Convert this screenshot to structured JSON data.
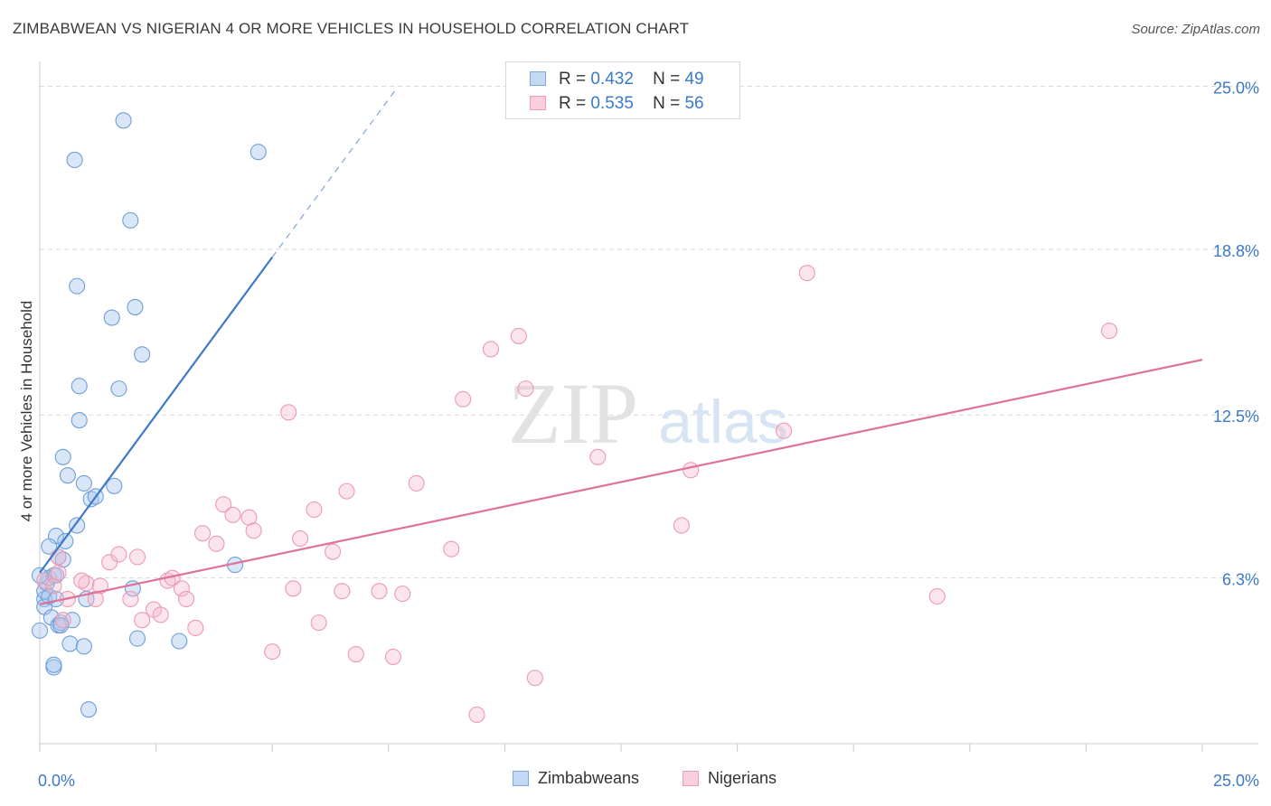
{
  "header": {
    "title": "ZIMBABWEAN VS NIGERIAN 4 OR MORE VEHICLES IN HOUSEHOLD CORRELATION CHART",
    "source": "Source: ZipAtlas.com"
  },
  "watermark": {
    "zip": "ZIP",
    "atlas": "atlas"
  },
  "colors": {
    "zimbabwean_fill": "#a9c8ef",
    "zimbabwean_line": "#3b79c9",
    "nigerian_fill": "#f5bccd",
    "nigerian_line": "#e07299",
    "tick_label": "#3b79c9",
    "grid": "#d9d9d9"
  },
  "legend": {
    "items": [
      {
        "r_label": "R =",
        "r_value": "0.432",
        "n_label": "N =",
        "n_value": "49"
      },
      {
        "r_label": "R =",
        "r_value": "0.535",
        "n_label": "N =",
        "n_value": "56"
      }
    ]
  },
  "bottom_legend": [
    "Zimbabweans",
    "Nigerians"
  ],
  "chart_data": {
    "type": "scatter",
    "title": "ZIMBABWEAN VS NIGERIAN 4 OR MORE VEHICLES IN HOUSEHOLD CORRELATION CHART",
    "xlabel": "",
    "ylabel": "4 or more Vehicles in Household",
    "xlim": [
      0,
      25
    ],
    "ylim": [
      0,
      25.6
    ],
    "x_tick_labels": [
      "0.0%",
      "25.0%"
    ],
    "y_ticks": [
      6.3,
      12.5,
      18.8,
      25.0
    ],
    "y_tick_labels": [
      "6.3%",
      "12.5%",
      "18.8%",
      "25.0%"
    ],
    "grid": true,
    "legend_position": "top-center",
    "series": [
      {
        "name": "Zimbabweans",
        "R": 0.432,
        "N": 49,
        "trend": {
          "x0": 0.0,
          "y0": 6.5,
          "x1": 5.0,
          "y1": 18.5,
          "dashed_to_x": 7.7
        },
        "points": [
          [
            0.0,
            4.3
          ],
          [
            0.1,
            5.5
          ],
          [
            0.1,
            5.2
          ],
          [
            0.1,
            5.8
          ],
          [
            0.15,
            6.1
          ],
          [
            0.2,
            6.3
          ],
          [
            0.2,
            5.6
          ],
          [
            0.25,
            4.8
          ],
          [
            0.3,
            6.4
          ],
          [
            0.3,
            2.9
          ],
          [
            0.35,
            5.5
          ],
          [
            0.35,
            7.9
          ],
          [
            0.4,
            7.1
          ],
          [
            0.4,
            4.5
          ],
          [
            0.45,
            4.6
          ],
          [
            0.5,
            7.0
          ],
          [
            0.5,
            10.9
          ],
          [
            0.55,
            7.7
          ],
          [
            0.6,
            10.2
          ],
          [
            0.65,
            3.8
          ],
          [
            0.7,
            4.7
          ],
          [
            0.8,
            8.3
          ],
          [
            0.85,
            12.3
          ],
          [
            0.85,
            13.6
          ],
          [
            0.95,
            3.7
          ],
          [
            0.95,
            9.9
          ],
          [
            1.0,
            5.5
          ],
          [
            1.05,
            1.3
          ],
          [
            1.1,
            9.3
          ],
          [
            1.2,
            9.4
          ],
          [
            1.6,
            9.8
          ],
          [
            1.7,
            13.5
          ],
          [
            1.8,
            23.7
          ],
          [
            1.95,
            19.9
          ],
          [
            2.0,
            5.9
          ],
          [
            2.05,
            16.6
          ],
          [
            2.1,
            4.0
          ],
          [
            2.2,
            14.8
          ],
          [
            3.0,
            3.9
          ],
          [
            4.2,
            6.8
          ],
          [
            4.7,
            22.5
          ],
          [
            0.0,
            6.4
          ],
          [
            0.2,
            7.5
          ],
          [
            0.3,
            3.0
          ],
          [
            0.8,
            17.4
          ],
          [
            0.75,
            22.2
          ],
          [
            1.55,
            16.2
          ],
          [
            0.35,
            6.4
          ],
          [
            0.45,
            4.5
          ]
        ]
      },
      {
        "name": "Nigerians",
        "R": 0.535,
        "N": 56,
        "trend": {
          "x0": 0.0,
          "y0": 5.3,
          "x1": 25.0,
          "y1": 14.6
        },
        "points": [
          [
            0.1,
            6.2
          ],
          [
            0.3,
            6.0
          ],
          [
            0.4,
            7.1
          ],
          [
            0.4,
            6.5
          ],
          [
            0.5,
            4.7
          ],
          [
            0.6,
            5.5
          ],
          [
            1.0,
            6.1
          ],
          [
            0.9,
            6.2
          ],
          [
            1.2,
            5.5
          ],
          [
            1.3,
            6.0
          ],
          [
            1.5,
            6.9
          ],
          [
            1.7,
            7.2
          ],
          [
            1.95,
            5.5
          ],
          [
            2.1,
            7.1
          ],
          [
            2.2,
            4.7
          ],
          [
            2.45,
            5.1
          ],
          [
            2.6,
            4.9
          ],
          [
            2.75,
            6.2
          ],
          [
            2.85,
            6.3
          ],
          [
            3.05,
            5.9
          ],
          [
            3.15,
            5.5
          ],
          [
            3.35,
            4.4
          ],
          [
            3.5,
            8.0
          ],
          [
            3.8,
            7.6
          ],
          [
            3.95,
            9.1
          ],
          [
            4.15,
            8.7
          ],
          [
            4.5,
            8.6
          ],
          [
            4.6,
            8.1
          ],
          [
            5.0,
            3.5
          ],
          [
            5.35,
            12.6
          ],
          [
            5.45,
            5.9
          ],
          [
            5.6,
            7.8
          ],
          [
            5.9,
            8.9
          ],
          [
            6.0,
            4.6
          ],
          [
            6.3,
            7.3
          ],
          [
            6.5,
            5.8
          ],
          [
            6.6,
            9.6
          ],
          [
            6.8,
            3.4
          ],
          [
            7.3,
            5.8
          ],
          [
            7.6,
            3.3
          ],
          [
            7.8,
            5.7
          ],
          [
            8.1,
            9.9
          ],
          [
            8.85,
            7.4
          ],
          [
            9.1,
            13.1
          ],
          [
            9.4,
            1.1
          ],
          [
            9.7,
            15.0
          ],
          [
            10.3,
            15.5
          ],
          [
            10.45,
            13.5
          ],
          [
            10.65,
            2.5
          ],
          [
            12.0,
            10.9
          ],
          [
            13.8,
            8.3
          ],
          [
            14.0,
            10.4
          ],
          [
            16.0,
            11.9
          ],
          [
            16.5,
            17.9
          ],
          [
            19.3,
            5.6
          ],
          [
            23.0,
            15.7
          ]
        ]
      }
    ]
  }
}
